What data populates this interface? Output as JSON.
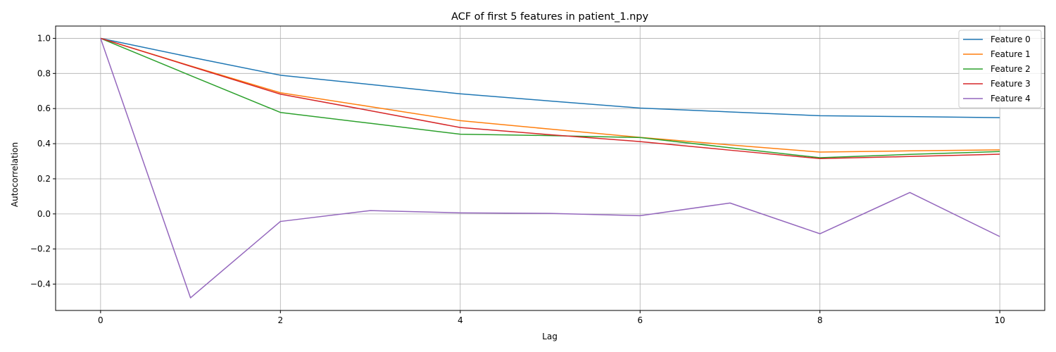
{
  "chart_data": {
    "type": "line",
    "title": "ACF of first 5 features in patient_1.npy",
    "xlabel": "Lag",
    "ylabel": "Autocorrelation",
    "xlim": [
      -0.5,
      10.5
    ],
    "ylim": [
      -0.55,
      1.07
    ],
    "xticks": [
      0,
      2,
      4,
      6,
      8,
      10
    ],
    "xtick_labels": [
      "0",
      "2",
      "4",
      "6",
      "8",
      "10"
    ],
    "yticks": [
      -0.4,
      -0.2,
      0.0,
      0.2,
      0.4,
      0.6,
      0.8,
      1.0
    ],
    "ytick_labels": [
      "−0.4",
      "−0.2",
      "0.0",
      "0.2",
      "0.4",
      "0.6",
      "0.8",
      "1.0"
    ],
    "grid": true,
    "legend_position": "top-right",
    "x": [
      0,
      1,
      2,
      3,
      4,
      5,
      6,
      7,
      8,
      9,
      10
    ],
    "series": [
      {
        "name": "Feature 0",
        "color": "#1f77b4",
        "values": [
          1.0,
          0.893,
          0.79,
          0.737,
          0.684,
          0.643,
          0.603,
          0.581,
          0.559,
          0.554,
          0.548
        ]
      },
      {
        "name": "Feature 1",
        "color": "#ff7f0e",
        "values": [
          1.0,
          0.843,
          0.69,
          0.611,
          0.531,
          0.483,
          0.436,
          0.393,
          0.352,
          0.359,
          0.365
        ]
      },
      {
        "name": "Feature 2",
        "color": "#2ca02c",
        "values": [
          1.0,
          0.788,
          0.578,
          0.516,
          0.454,
          0.446,
          0.435,
          0.377,
          0.32,
          0.339,
          0.355
        ]
      },
      {
        "name": "Feature 3",
        "color": "#d62728",
        "values": [
          1.0,
          0.841,
          0.682,
          0.588,
          0.492,
          0.451,
          0.412,
          0.363,
          0.315,
          0.327,
          0.34
        ]
      },
      {
        "name": "Feature 4",
        "color": "#9467bd",
        "values": [
          1.0,
          -0.478,
          -0.043,
          0.019,
          0.006,
          0.003,
          -0.01,
          0.062,
          -0.113,
          0.122,
          -0.129
        ]
      }
    ]
  }
}
